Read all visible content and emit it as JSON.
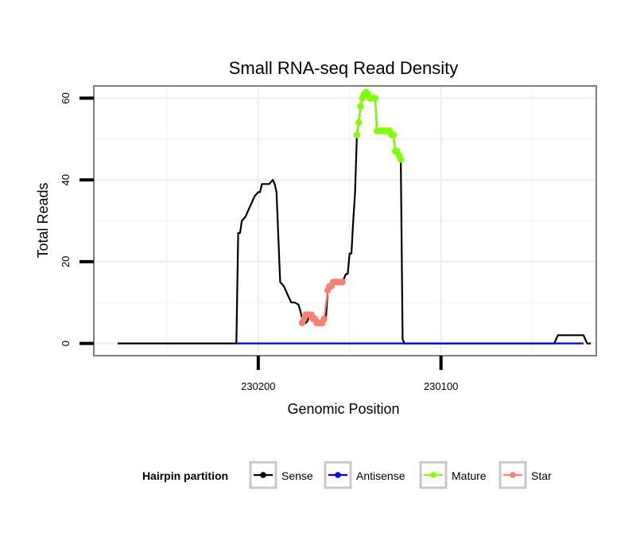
{
  "chart_data": {
    "type": "line",
    "title": "Small RNA-seq Read Density",
    "xlabel": "Genomic Position",
    "ylabel": "Total Reads",
    "x_reversed": true,
    "xlim": [
      230015,
      230290
    ],
    "ylim": [
      -3,
      63
    ],
    "x_ticks": [
      230200,
      230100
    ],
    "x_tick_labels": [
      "230200",
      "230100"
    ],
    "y_ticks": [
      0,
      20,
      40,
      60
    ],
    "y_tick_labels": [
      "0",
      "20",
      "40",
      "60"
    ],
    "grid": true,
    "legend": {
      "title": "Hairpin partition",
      "position": "bottom",
      "entries": [
        {
          "label": "Sense",
          "color": "#000000"
        },
        {
          "label": "Antisense",
          "color": "#0000ff"
        },
        {
          "label": "Mature",
          "color": "#7fff00"
        },
        {
          "label": "Star",
          "color": "#fa8072"
        }
      ]
    },
    "series": [
      {
        "name": "Sense",
        "color": "#000000",
        "points": [
          [
            230277,
            0
          ],
          [
            230256,
            0
          ],
          [
            230233,
            0
          ],
          [
            230220,
            0
          ],
          [
            230212,
            0
          ],
          [
            230211,
            27
          ],
          [
            230210,
            27
          ],
          [
            230209,
            30
          ],
          [
            230207,
            31
          ],
          [
            230205,
            33
          ],
          [
            230203,
            35
          ],
          [
            230202,
            36
          ],
          [
            230200,
            37
          ],
          [
            230199,
            37
          ],
          [
            230198,
            39
          ],
          [
            230196,
            39
          ],
          [
            230194,
            39
          ],
          [
            230193,
            39.5
          ],
          [
            230192,
            40
          ],
          [
            230191,
            39
          ],
          [
            230190,
            37
          ],
          [
            230189,
            26
          ],
          [
            230188,
            15
          ],
          [
            230187,
            14.5
          ],
          [
            230186,
            14
          ],
          [
            230185,
            13
          ],
          [
            230184,
            12
          ],
          [
            230183,
            11
          ],
          [
            230182,
            10
          ],
          [
            230180,
            10
          ],
          [
            230178,
            9.5
          ],
          [
            230177,
            8
          ],
          [
            230176,
            6
          ],
          [
            230175,
            5
          ],
          [
            230174,
            5
          ],
          [
            230173,
            5.5
          ],
          [
            230172,
            7
          ],
          [
            230170,
            7
          ],
          [
            230168,
            6
          ],
          [
            230166,
            5
          ],
          [
            230164,
            5
          ],
          [
            230163,
            6
          ],
          [
            230162,
            13
          ],
          [
            230160,
            14
          ],
          [
            230158,
            15
          ],
          [
            230154,
            15
          ],
          [
            230153,
            16
          ],
          [
            230152,
            17
          ],
          [
            230151,
            17
          ],
          [
            230150,
            22
          ],
          [
            230149,
            22
          ],
          [
            230148,
            30
          ],
          [
            230147,
            37
          ],
          [
            230146,
            51
          ],
          [
            230145,
            54
          ],
          [
            230144,
            58
          ],
          [
            230143,
            60
          ],
          [
            230142,
            61
          ],
          [
            230140,
            61
          ],
          [
            230139,
            60
          ],
          [
            230137,
            60
          ],
          [
            230136,
            60
          ],
          [
            230135,
            52
          ],
          [
            230133,
            52
          ],
          [
            230131,
            52
          ],
          [
            230129,
            52
          ],
          [
            230128,
            52
          ],
          [
            230127,
            51
          ],
          [
            230126,
            51
          ],
          [
            230125,
            47
          ],
          [
            230124,
            47
          ],
          [
            230123,
            46
          ],
          [
            230122,
            45
          ],
          [
            230121,
            1
          ],
          [
            230120,
            0
          ],
          [
            230100,
            0
          ],
          [
            230060,
            0
          ],
          [
            230038,
            0
          ],
          [
            230037,
            1
          ],
          [
            230036,
            2
          ],
          [
            230028,
            2
          ],
          [
            230022,
            2
          ],
          [
            230021,
            1
          ],
          [
            230020,
            0
          ],
          [
            230018,
            0
          ]
        ]
      },
      {
        "name": "Antisense",
        "color": "#0000ff",
        "points": [
          [
            230212,
            0
          ],
          [
            230121,
            0
          ],
          [
            230038,
            0
          ],
          [
            230022,
            0
          ]
        ]
      },
      {
        "name": "Mature",
        "color": "#7fff00",
        "points": [
          [
            230146,
            51
          ],
          [
            230145,
            54
          ],
          [
            230144,
            58
          ],
          [
            230143,
            60
          ],
          [
            230142,
            61
          ],
          [
            230141,
            61.5
          ],
          [
            230140,
            61
          ],
          [
            230139,
            60
          ],
          [
            230138,
            60
          ],
          [
            230137,
            60
          ],
          [
            230136,
            60
          ],
          [
            230135,
            52
          ],
          [
            230134,
            52
          ],
          [
            230133,
            52
          ],
          [
            230132,
            52
          ],
          [
            230131,
            52
          ],
          [
            230130,
            52
          ],
          [
            230129,
            52
          ],
          [
            230128,
            52
          ],
          [
            230127,
            51
          ],
          [
            230126,
            51
          ],
          [
            230125,
            47
          ],
          [
            230124,
            47
          ],
          [
            230123,
            46
          ],
          [
            230122,
            45
          ]
        ]
      },
      {
        "name": "Star",
        "color": "#fa8072",
        "points": [
          [
            230176,
            5
          ],
          [
            230175,
            6
          ],
          [
            230174,
            7
          ],
          [
            230173,
            7
          ],
          [
            230172,
            7
          ],
          [
            230171,
            7
          ],
          [
            230170,
            6
          ],
          [
            230169,
            6
          ],
          [
            230168,
            5
          ],
          [
            230167,
            5
          ],
          [
            230166,
            5
          ],
          [
            230165,
            5
          ],
          [
            230164,
            6
          ],
          [
            230162,
            13
          ],
          [
            230161,
            14
          ],
          [
            230160,
            14
          ],
          [
            230159,
            15
          ],
          [
            230158,
            15
          ],
          [
            230157,
            15
          ],
          [
            230156,
            15
          ],
          [
            230155,
            15
          ],
          [
            230154,
            15
          ]
        ]
      }
    ]
  }
}
